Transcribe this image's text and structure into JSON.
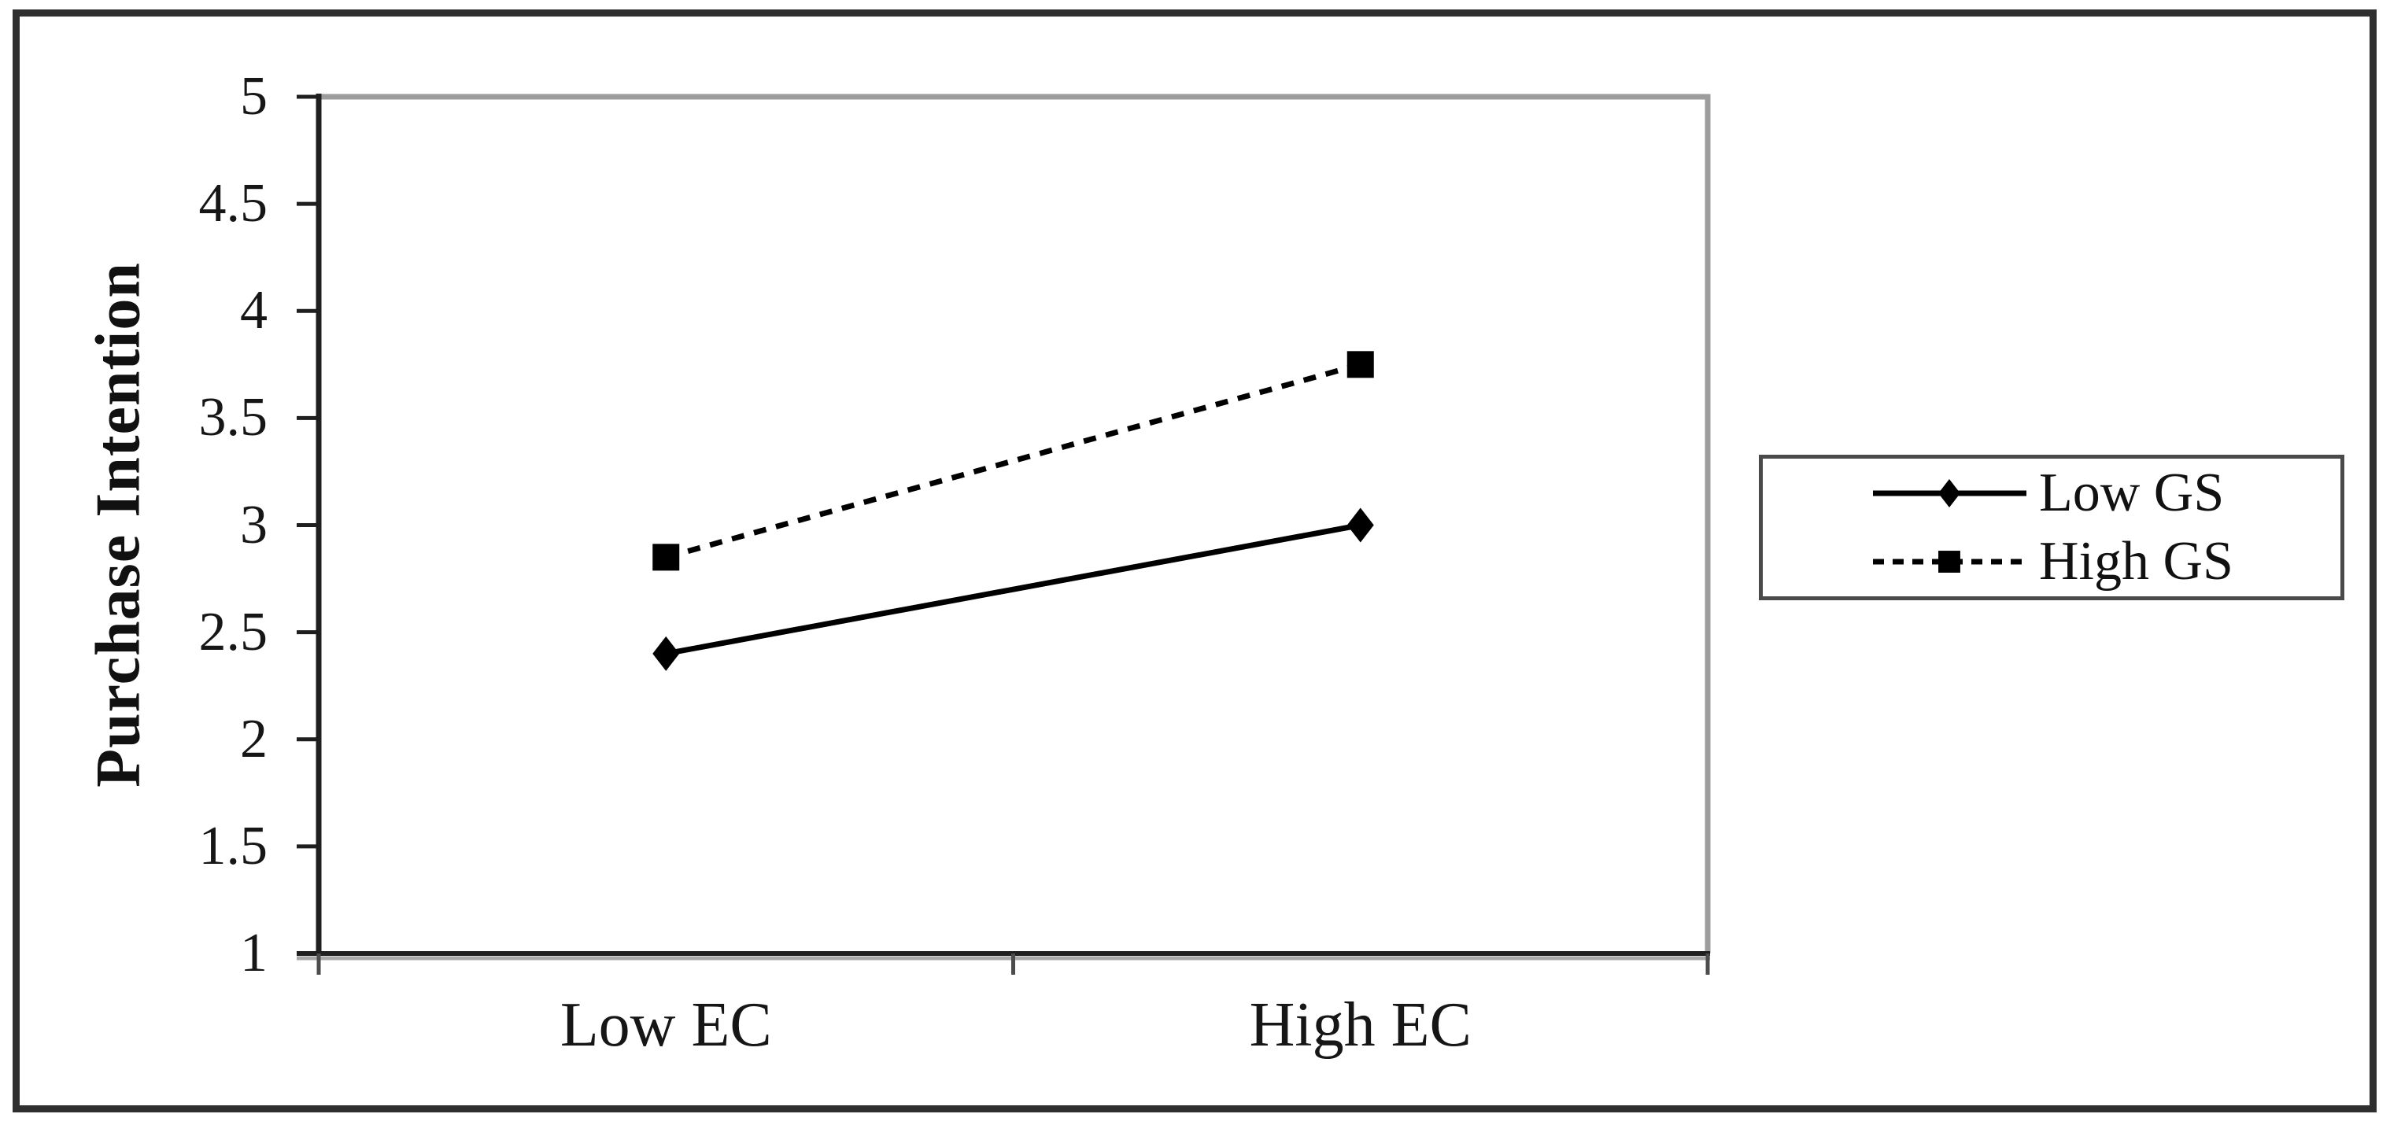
{
  "colors": {
    "ink": "#000000",
    "axis": "#1f1f1f",
    "plot_border": "#9c9c9c",
    "axis_shadow": "#a8a8a8",
    "figure_border": "#2f2f2f",
    "legend_border": "#4a4a4a",
    "background": "#ffffff"
  },
  "chart_data": {
    "type": "line",
    "title": "",
    "xlabel": "",
    "ylabel": "Purchase Intention",
    "categories": [
      "Low EC",
      "High EC"
    ],
    "series": [
      {
        "name": "Low GS",
        "values": [
          2.4,
          3.0
        ],
        "line_style": "solid",
        "marker": "diamond",
        "color": "#000000"
      },
      {
        "name": "High GS",
        "values": [
          2.85,
          3.75
        ],
        "line_style": "dashed",
        "marker": "square",
        "color": "#000000"
      }
    ],
    "ylim": [
      1,
      5
    ],
    "y_ticks": [
      1,
      1.5,
      2,
      2.5,
      3,
      3.5,
      4,
      4.5,
      5
    ],
    "x_tick_marks": 3,
    "grid": false,
    "legend_position": "outside-right"
  }
}
